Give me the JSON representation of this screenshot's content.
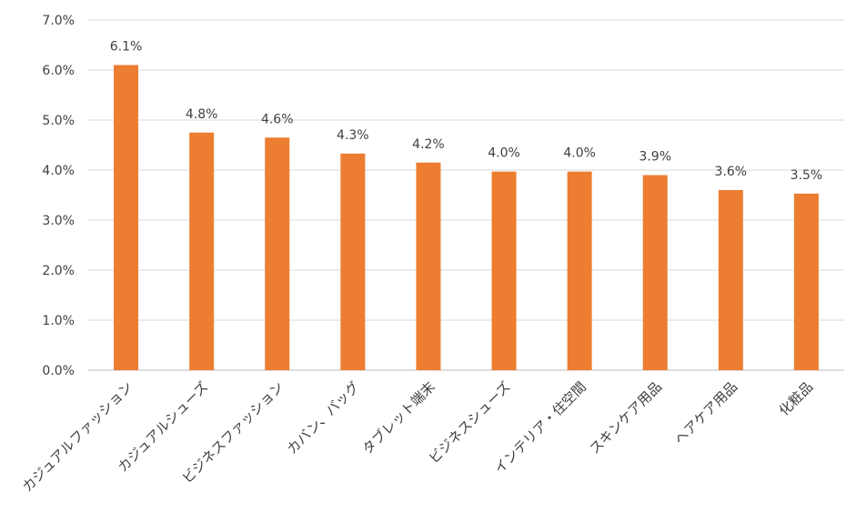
{
  "chart_data": {
    "type": "bar",
    "title": "",
    "xlabel": "",
    "ylabel": "",
    "categories": [
      "カジュアルファッション",
      "カジュアルシューズ",
      "ビジネスファッション",
      "カバン、バッグ",
      "タブレット端末",
      "ビジネスシューズ",
      "インテリア・住空間",
      "スキンケア用品",
      "ヘアケア用品",
      "化粧品"
    ],
    "values": [
      6.1,
      4.75,
      4.65,
      4.33,
      4.15,
      3.97,
      3.97,
      3.9,
      3.6,
      3.53
    ],
    "data_labels": [
      "6.1%",
      "4.8%",
      "4.6%",
      "4.3%",
      "4.2%",
      "4.0%",
      "4.0%",
      "3.9%",
      "3.6%",
      "3.5%"
    ],
    "ylim": [
      0,
      7
    ],
    "yticks": [
      0,
      1,
      2,
      3,
      4,
      5,
      6,
      7
    ],
    "ytick_labels": [
      "0.0%",
      "1.0%",
      "2.0%",
      "3.0%",
      "4.0%",
      "5.0%",
      "6.0%",
      "7.0%"
    ],
    "grid": true,
    "legend": "none",
    "bar_color": "#ed7d31"
  }
}
